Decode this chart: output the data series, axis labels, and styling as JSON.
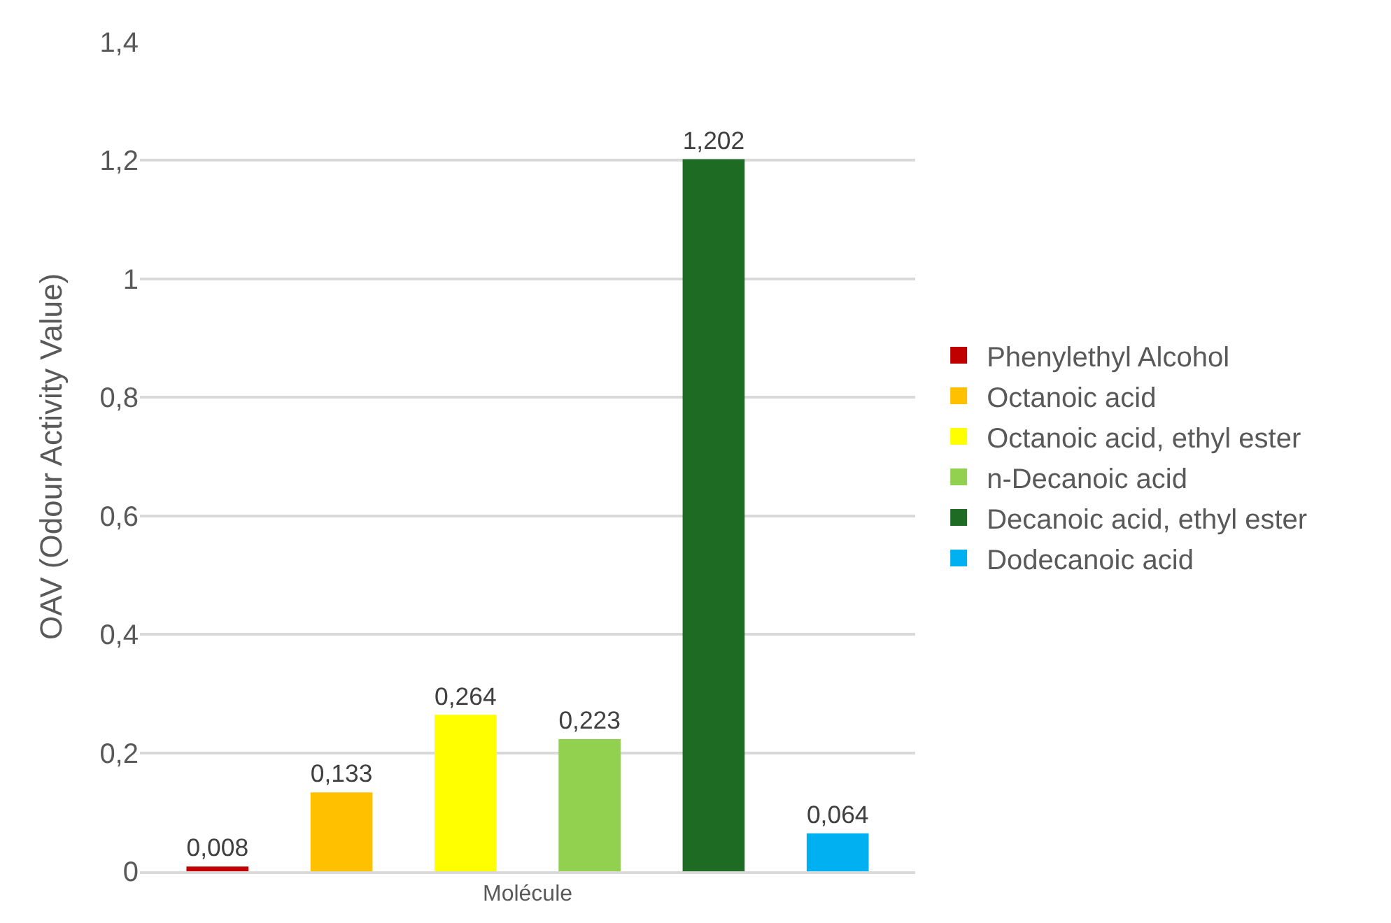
{
  "chart_data": {
    "type": "bar",
    "ylabel": "OAV (Odour Activity Value)",
    "categories": [
      "Molécule"
    ],
    "series": [
      {
        "name": "Phenylethyl Alcohol",
        "color": "#c00000",
        "values": [
          0.008
        ],
        "value_labels": [
          "0,008"
        ]
      },
      {
        "name": "Octanoic acid",
        "color": "#ffc000",
        "values": [
          0.133
        ],
        "value_labels": [
          "0,133"
        ]
      },
      {
        "name": "Octanoic acid, ethyl ester",
        "color": "#ffff00",
        "values": [
          0.264
        ],
        "value_labels": [
          "0,264"
        ]
      },
      {
        "name": "n-Decanoic acid",
        "color": "#92d050",
        "values": [
          0.223
        ],
        "value_labels": [
          "0,223"
        ]
      },
      {
        "name": "Decanoic acid, ethyl ester",
        "color": "#1e6b24",
        "values": [
          1.202
        ],
        "value_labels": [
          "1,202"
        ]
      },
      {
        "name": "Dodecanoic acid",
        "color": "#00b0f0",
        "values": [
          0.064
        ],
        "value_labels": [
          "0,064"
        ]
      }
    ],
    "ylim": [
      0,
      1.4
    ],
    "yticks": [
      0,
      {
        "value": 0.2,
        "label": "0,2"
      },
      {
        "value": 0.4,
        "label": "0,4"
      },
      {
        "value": 0.6,
        "label": "0,6"
      },
      {
        "value": 0.8,
        "label": "0,8"
      },
      1,
      {
        "value": 1.2,
        "label": "1,2"
      },
      {
        "value": 1.4,
        "label": "1,4"
      }
    ],
    "grid": "y",
    "legend": "right"
  }
}
